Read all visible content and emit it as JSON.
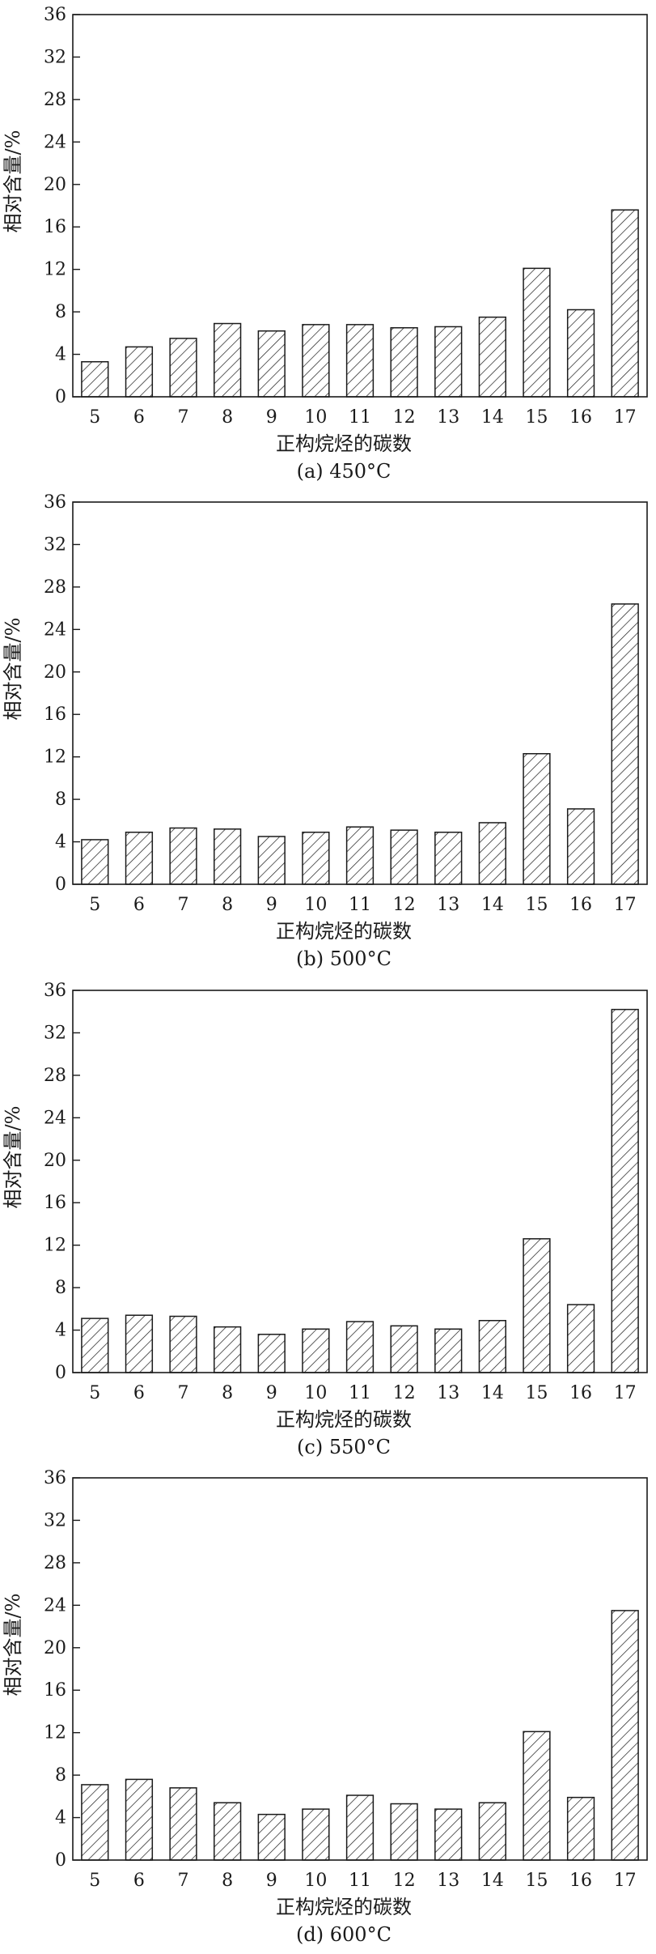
{
  "chart_data": [
    {
      "type": "bar",
      "categories": [
        "5",
        "6",
        "7",
        "8",
        "9",
        "10",
        "11",
        "12",
        "13",
        "14",
        "15",
        "16",
        "17"
      ],
      "values": [
        3.3,
        4.7,
        5.5,
        6.9,
        6.2,
        6.8,
        6.8,
        6.5,
        6.6,
        7.5,
        12.1,
        8.2,
        17.6
      ],
      "xlabel": "正构烷烃的碳数",
      "ylabel": "相对含量/%",
      "caption": "(a) 450°C",
      "ylim": [
        0,
        36
      ],
      "yticks": [
        "0",
        "4",
        "8",
        "12",
        "16",
        "20",
        "24",
        "28",
        "32",
        "36"
      ],
      "bar_fill": "hatched",
      "grid": false
    },
    {
      "type": "bar",
      "categories": [
        "5",
        "6",
        "7",
        "8",
        "9",
        "10",
        "11",
        "12",
        "13",
        "14",
        "15",
        "16",
        "17"
      ],
      "values": [
        4.2,
        4.9,
        5.3,
        5.2,
        4.5,
        4.9,
        5.4,
        5.1,
        4.9,
        5.8,
        12.3,
        7.1,
        26.4
      ],
      "xlabel": "正构烷烃的碳数",
      "ylabel": "相对含量/%",
      "caption": "(b) 500°C",
      "ylim": [
        0,
        36
      ],
      "yticks": [
        "0",
        "4",
        "8",
        "12",
        "16",
        "20",
        "24",
        "28",
        "32",
        "36"
      ],
      "bar_fill": "hatched",
      "grid": false
    },
    {
      "type": "bar",
      "categories": [
        "5",
        "6",
        "7",
        "8",
        "9",
        "10",
        "11",
        "12",
        "13",
        "14",
        "15",
        "16",
        "17"
      ],
      "values": [
        5.1,
        5.4,
        5.3,
        4.3,
        3.6,
        4.1,
        4.8,
        4.4,
        4.1,
        4.9,
        12.6,
        6.4,
        34.2
      ],
      "xlabel": "正构烷烃的碳数",
      "ylabel": "相对含量/%",
      "caption": "(c) 550°C",
      "ylim": [
        0,
        36
      ],
      "yticks": [
        "0",
        "4",
        "8",
        "12",
        "16",
        "20",
        "24",
        "28",
        "32",
        "36"
      ],
      "bar_fill": "hatched",
      "grid": false
    },
    {
      "type": "bar",
      "categories": [
        "5",
        "6",
        "7",
        "8",
        "9",
        "10",
        "11",
        "12",
        "13",
        "14",
        "15",
        "16",
        "17"
      ],
      "values": [
        7.1,
        7.6,
        6.8,
        5.4,
        4.3,
        4.8,
        6.1,
        5.3,
        4.8,
        5.4,
        12.1,
        5.9,
        23.5
      ],
      "xlabel": "正构烷烃的碳数",
      "ylabel": "相对含量/%",
      "caption": "(d) 600°C",
      "ylim": [
        0,
        36
      ],
      "yticks": [
        "0",
        "4",
        "8",
        "12",
        "16",
        "20",
        "24",
        "28",
        "32",
        "36"
      ],
      "bar_fill": "hatched",
      "grid": false
    }
  ],
  "colors": {
    "stroke": "#1a1a1a",
    "background": "#ffffff"
  }
}
